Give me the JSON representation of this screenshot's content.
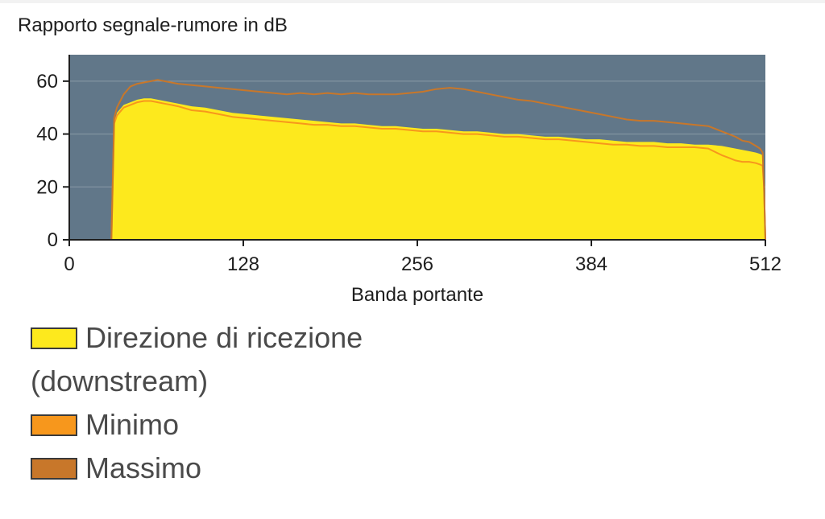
{
  "chart_data": {
    "type": "area",
    "title": "Rapporto segnale-rumore in dB",
    "xlabel": "Banda portante",
    "ylabel": "",
    "xlim": [
      0,
      512
    ],
    "ylim": [
      0,
      70
    ],
    "x_ticks": [
      0,
      128,
      256,
      384,
      512
    ],
    "y_ticks": [
      0,
      20,
      40,
      60
    ],
    "grid": "horizontal",
    "colors": {
      "plot_background": "#617789",
      "gridline": "#8a9aa7",
      "downstream": "#fde91d",
      "minimo": "#f7971c",
      "massimo": "#c8772a"
    },
    "series": [
      {
        "name": "Direzione di ricezione (downstream)",
        "style": "area",
        "x": [
          31,
          33,
          35,
          40,
          45,
          50,
          55,
          60,
          65,
          70,
          75,
          80,
          90,
          100,
          110,
          120,
          130,
          140,
          150,
          160,
          170,
          180,
          190,
          200,
          210,
          220,
          230,
          240,
          250,
          260,
          270,
          280,
          290,
          300,
          310,
          320,
          330,
          340,
          350,
          360,
          370,
          380,
          390,
          400,
          410,
          420,
          430,
          440,
          450,
          460,
          470,
          480,
          485,
          490,
          495,
          500,
          505,
          508,
          510,
          511,
          512
        ],
        "values": [
          0,
          44,
          48,
          51,
          52,
          53,
          53.5,
          53.5,
          53,
          52.5,
          52,
          51.5,
          50.5,
          50,
          49,
          48,
          47.5,
          47,
          46.5,
          46,
          45.5,
          45,
          44.5,
          44,
          44,
          43.5,
          43,
          43,
          42.5,
          42,
          42,
          41.5,
          41,
          41,
          40.5,
          40,
          40,
          39.5,
          39,
          39,
          38.5,
          38,
          38,
          37.5,
          37,
          37,
          37,
          36.5,
          36.5,
          36,
          36,
          35.5,
          35,
          34.5,
          34,
          33.5,
          33,
          32.5,
          32,
          20,
          0
        ]
      },
      {
        "name": "Minimo",
        "style": "line",
        "x": [
          31,
          33,
          35,
          40,
          45,
          50,
          55,
          60,
          65,
          70,
          75,
          80,
          90,
          100,
          110,
          120,
          130,
          140,
          150,
          160,
          170,
          180,
          190,
          200,
          210,
          220,
          230,
          240,
          250,
          260,
          270,
          280,
          290,
          300,
          310,
          320,
          330,
          340,
          350,
          360,
          370,
          380,
          390,
          400,
          410,
          420,
          430,
          440,
          450,
          460,
          470,
          480,
          485,
          490,
          495,
          500,
          505,
          508,
          510,
          511,
          512
        ],
        "values": [
          0,
          44,
          47,
          50,
          51,
          52,
          52.5,
          52.5,
          52,
          51.5,
          51,
          50.5,
          49,
          48.5,
          47.5,
          46.5,
          46,
          45.5,
          45,
          44.5,
          44,
          43.5,
          43.5,
          43,
          43,
          42.5,
          42,
          42,
          41.5,
          41,
          41,
          40.5,
          40,
          40,
          39.5,
          39,
          39,
          38.5,
          38,
          38,
          37.5,
          37,
          36.5,
          36,
          36,
          35.5,
          35.5,
          35,
          35,
          35,
          34.5,
          32,
          31,
          30,
          29.5,
          29.5,
          29,
          28.5,
          28,
          20,
          0
        ]
      },
      {
        "name": "Massimo",
        "style": "line",
        "x": [
          31,
          33,
          35,
          40,
          45,
          50,
          55,
          60,
          65,
          70,
          75,
          80,
          90,
          100,
          110,
          120,
          130,
          140,
          150,
          160,
          170,
          180,
          190,
          200,
          210,
          220,
          230,
          240,
          250,
          260,
          270,
          280,
          290,
          300,
          310,
          320,
          330,
          340,
          350,
          360,
          370,
          380,
          390,
          400,
          410,
          420,
          430,
          440,
          450,
          460,
          470,
          480,
          485,
          490,
          495,
          500,
          505,
          508,
          510,
          511,
          512
        ],
        "values": [
          0,
          46,
          50,
          55,
          58,
          59,
          59.5,
          60,
          60.5,
          60,
          59.5,
          59,
          58.5,
          58,
          57.5,
          57,
          56.5,
          56,
          55.5,
          55,
          55.5,
          55,
          55.5,
          55,
          55.5,
          55,
          55,
          55,
          55.5,
          56,
          57,
          57.5,
          57,
          56,
          55,
          54,
          53,
          52.5,
          51.5,
          50.5,
          49.5,
          48.5,
          47.5,
          46.5,
          45.5,
          45,
          45,
          44.5,
          44,
          43.5,
          43,
          41,
          40,
          39,
          37.5,
          37,
          35.5,
          34.5,
          33,
          20,
          0
        ]
      }
    ],
    "legend": {
      "position": "bottom-left",
      "items": [
        {
          "label": "Direzione di ricezione (downstream)",
          "color": "#fde91d"
        },
        {
          "label": "Minimo",
          "color": "#f7971c"
        },
        {
          "label": "Massimo",
          "color": "#c8772a"
        }
      ]
    }
  }
}
